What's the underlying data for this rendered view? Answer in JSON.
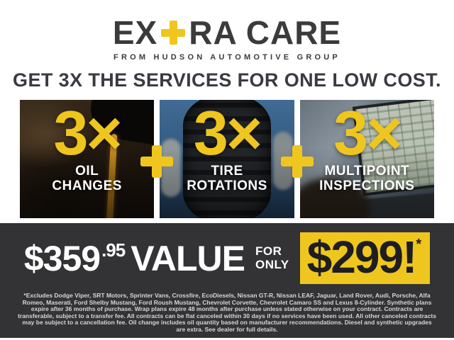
{
  "colors": {
    "accent_yellow": "#EFC61E",
    "band_charcoal": "#333336",
    "ink": "#3B3B3D"
  },
  "header": {
    "logo": {
      "part1": "EX",
      "part2": "RA CARE"
    },
    "tagline": "FROM HUDSON AUTOMOTIVE GROUP",
    "headline": "GET 3X THE SERVICES FOR ONE LOW COST."
  },
  "services": [
    {
      "multiplier": "3×",
      "label_line1": "OIL",
      "label_line2": "CHANGES"
    },
    {
      "multiplier": "3×",
      "label_line1": "TIRE",
      "label_line2": "ROTATIONS"
    },
    {
      "multiplier": "3×",
      "label_line1": "MULTIPOINT",
      "label_line2": "INSPECTIONS"
    }
  ],
  "offer": {
    "value_price_dollars": "$359",
    "value_price_cents": ".95",
    "value_label": "VALUE",
    "for_label": "FOR",
    "only_label": "ONLY",
    "sale_price": "$299!",
    "sale_asterisk": "*",
    "disclaimer": "*Excludes Dodge Viper, SRT Motors, Sprinter Vans, Crossfire, EcoDiesels, Nissan GT-R, Nissan LEAF, Jaguar, Land Rover, Audi, Porsche, Alfa Romeo, Maserati, Ford Shelby Mustang, Ford Roush Mustang, Chevrolet Corvette, Chevrolet Camaro SS and Lexus 8-Cylinder. Synthetic plans expire after 36 months of purchase. Wrap plans expire 48 months after purchase unless stated otherwise on your contract. Contracts are transferable, subject to a transfer fee. All contracts can be flat canceled within 30 days if no services have been used. All other canceled contracts may be subject to a cancellation fee. Oil change includes oil quantity based on manufacturer recommendations. Diesel and synthetic upgrades are extra. See dealer for full details."
  }
}
